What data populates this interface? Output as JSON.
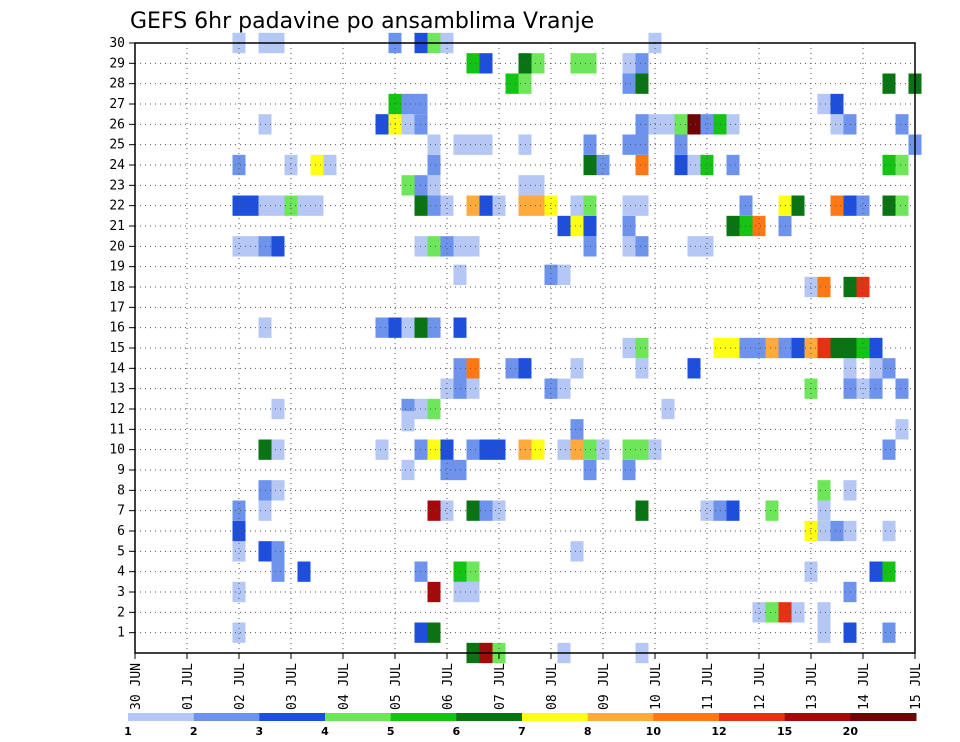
{
  "chart_data": {
    "type": "heatmap",
    "title": "GEFS 6hr padavine po ansamblima Vranje",
    "y_ticks": [
      "1",
      "2",
      "3",
      "4",
      "5",
      "6",
      "7",
      "8",
      "9",
      "10",
      "11",
      "12",
      "13",
      "14",
      "15",
      "16",
      "17",
      "18",
      "19",
      "20",
      "21",
      "22",
      "23",
      "24",
      "25",
      "26",
      "27",
      "28",
      "29",
      "30"
    ],
    "x_ticks": [
      "30 JUN",
      "01 JUL",
      "02 JUL",
      "03 JUL",
      "04 JUL",
      "05 JUL",
      "06 JUL",
      "07 JUL",
      "08 JUL",
      "09 JUL",
      "10 JUL",
      "11 JUL",
      "12 JUL",
      "13 JUL",
      "14 JUL",
      "15 JUL"
    ],
    "grid": true,
    "colorbar": {
      "labels": [
        "1",
        "2",
        "3",
        "4",
        "5",
        "6",
        "7",
        "8",
        "10",
        "12",
        "15",
        "20"
      ],
      "colors": [
        "#b4c7f5",
        "#6e93ec",
        "#1e4fdc",
        "#6ee65a",
        "#14c314",
        "#0a7314",
        "#ffff14",
        "#ffaa3c",
        "#ff7814",
        "#e63214",
        "#a50a0a",
        "#6e0505"
      ]
    },
    "cells": [
      [
        2.0,
        1,
        1
      ],
      [
        5.5,
        1,
        3
      ],
      [
        5.75,
        1,
        6
      ],
      [
        13.25,
        1,
        1
      ],
      [
        13.75,
        1,
        3
      ],
      [
        14.5,
        1,
        2
      ],
      [
        12.0,
        2,
        1
      ],
      [
        12.25,
        2,
        4
      ],
      [
        12.5,
        2,
        10
      ],
      [
        12.75,
        2,
        1
      ],
      [
        13.25,
        2,
        1
      ],
      [
        2.0,
        3,
        1
      ],
      [
        5.75,
        3,
        11
      ],
      [
        6.25,
        3,
        1
      ],
      [
        6.5,
        3,
        1
      ],
      [
        13.75,
        3,
        2
      ],
      [
        2.75,
        4,
        2
      ],
      [
        3.25,
        4,
        3
      ],
      [
        5.5,
        4,
        2
      ],
      [
        6.25,
        4,
        5
      ],
      [
        6.5,
        4,
        4
      ],
      [
        13.0,
        4,
        1
      ],
      [
        14.25,
        4,
        3
      ],
      [
        14.5,
        4,
        5
      ],
      [
        2.0,
        5,
        1
      ],
      [
        2.5,
        5,
        3
      ],
      [
        2.75,
        5,
        2
      ],
      [
        8.5,
        5,
        1
      ],
      [
        2.0,
        6,
        3
      ],
      [
        13.0,
        6,
        7
      ],
      [
        13.25,
        6,
        1
      ],
      [
        13.5,
        6,
        2
      ],
      [
        13.75,
        6,
        1
      ],
      [
        14.5,
        6,
        1
      ],
      [
        2.0,
        7,
        2
      ],
      [
        2.5,
        7,
        1
      ],
      [
        5.75,
        7,
        11
      ],
      [
        6.0,
        7,
        1
      ],
      [
        6.5,
        7,
        6
      ],
      [
        6.75,
        7,
        2
      ],
      [
        7.0,
        7,
        1
      ],
      [
        9.75,
        7,
        6
      ],
      [
        11.0,
        7,
        1
      ],
      [
        11.25,
        7,
        2
      ],
      [
        11.5,
        7,
        3
      ],
      [
        12.25,
        7,
        4
      ],
      [
        13.25,
        7,
        1
      ],
      [
        2.5,
        8,
        2
      ],
      [
        2.75,
        8,
        1
      ],
      [
        13.25,
        8,
        4
      ],
      [
        13.75,
        8,
        1
      ],
      [
        5.25,
        9,
        1
      ],
      [
        6.0,
        9,
        2
      ],
      [
        6.25,
        9,
        2
      ],
      [
        8.75,
        9,
        2
      ],
      [
        9.5,
        9,
        2
      ],
      [
        2.5,
        10,
        6
      ],
      [
        2.75,
        10,
        1
      ],
      [
        4.75,
        10,
        1
      ],
      [
        5.5,
        10,
        2
      ],
      [
        5.75,
        10,
        7
      ],
      [
        6.0,
        10,
        3
      ],
      [
        6.5,
        10,
        2
      ],
      [
        6.75,
        10,
        3
      ],
      [
        7.0,
        10,
        3
      ],
      [
        7.5,
        10,
        8
      ],
      [
        7.75,
        10,
        7
      ],
      [
        8.25,
        10,
        1
      ],
      [
        8.5,
        10,
        8
      ],
      [
        8.75,
        10,
        4
      ],
      [
        9.0,
        10,
        1
      ],
      [
        9.5,
        10,
        4
      ],
      [
        9.75,
        10,
        4
      ],
      [
        10.0,
        10,
        1
      ],
      [
        14.5,
        10,
        2
      ],
      [
        8.5,
        11,
        2
      ],
      [
        14.75,
        11,
        1
      ],
      [
        2.75,
        12,
        1
      ],
      [
        5.25,
        12,
        2
      ],
      [
        5.5,
        12,
        1
      ],
      [
        5.75,
        12,
        4
      ],
      [
        5.25,
        11.4,
        1
      ],
      [
        10.25,
        12,
        1
      ],
      [
        6.0,
        13,
        1
      ],
      [
        6.25,
        13,
        2
      ],
      [
        6.5,
        13,
        1
      ],
      [
        8.0,
        13,
        2
      ],
      [
        8.25,
        13,
        1
      ],
      [
        13.0,
        13,
        4
      ],
      [
        13.75,
        13,
        2
      ],
      [
        14.0,
        13,
        1
      ],
      [
        14.25,
        13,
        2
      ],
      [
        14.75,
        13,
        2
      ],
      [
        6.25,
        14,
        2
      ],
      [
        6.5,
        14,
        9
      ],
      [
        7.25,
        14,
        2
      ],
      [
        7.5,
        14,
        3
      ],
      [
        8.5,
        14,
        1
      ],
      [
        9.75,
        14,
        1
      ],
      [
        10.75,
        14,
        3
      ],
      [
        13.75,
        14,
        1
      ],
      [
        14.25,
        14,
        1
      ],
      [
        14.5,
        14,
        2
      ],
      [
        9.5,
        15,
        1
      ],
      [
        9.75,
        15,
        4
      ],
      [
        11.25,
        15,
        7
      ],
      [
        11.5,
        15,
        7
      ],
      [
        11.75,
        15,
        2
      ],
      [
        12.0,
        15,
        2
      ],
      [
        12.25,
        15,
        8
      ],
      [
        12.5,
        15,
        2
      ],
      [
        12.75,
        15,
        3
      ],
      [
        13.0,
        15,
        8
      ],
      [
        13.25,
        15,
        10
      ],
      [
        13.5,
        15,
        6
      ],
      [
        13.75,
        15,
        6
      ],
      [
        14.0,
        15,
        5
      ],
      [
        14.25,
        15,
        3
      ],
      [
        2.5,
        16,
        1
      ],
      [
        4.75,
        16,
        2
      ],
      [
        5.0,
        16,
        3
      ],
      [
        5.25,
        16,
        1
      ],
      [
        5.5,
        16,
        6
      ],
      [
        5.75,
        16,
        2
      ],
      [
        6.25,
        16,
        3
      ],
      [
        13.0,
        18,
        1
      ],
      [
        13.25,
        18,
        9
      ],
      [
        13.75,
        18,
        6
      ],
      [
        14.0,
        18,
        10
      ],
      [
        6.25,
        18.6,
        1
      ],
      [
        8.0,
        18.6,
        2
      ],
      [
        8.25,
        18.6,
        1
      ],
      [
        2.0,
        20,
        1
      ],
      [
        2.25,
        20,
        1
      ],
      [
        2.5,
        20,
        2
      ],
      [
        2.75,
        20,
        3
      ],
      [
        5.5,
        20,
        1
      ],
      [
        5.75,
        20,
        4
      ],
      [
        6.0,
        20,
        2
      ],
      [
        6.25,
        20,
        1
      ],
      [
        6.5,
        20,
        1
      ],
      [
        8.75,
        20,
        2
      ],
      [
        9.5,
        20,
        1
      ],
      [
        9.75,
        20,
        2
      ],
      [
        10.75,
        20,
        1
      ],
      [
        11.0,
        20,
        1
      ],
      [
        8.25,
        21,
        3
      ],
      [
        8.5,
        21,
        7
      ],
      [
        8.75,
        21,
        3
      ],
      [
        9.5,
        21,
        2
      ],
      [
        11.5,
        21,
        6
      ],
      [
        11.75,
        21,
        5
      ],
      [
        12.0,
        21,
        9
      ],
      [
        12.5,
        21,
        2
      ],
      [
        2.0,
        22,
        3
      ],
      [
        2.25,
        22,
        3
      ],
      [
        2.5,
        22,
        1
      ],
      [
        2.75,
        22,
        1
      ],
      [
        3.0,
        22,
        4
      ],
      [
        3.25,
        22,
        1
      ],
      [
        3.5,
        22,
        1
      ],
      [
        5.5,
        22,
        6
      ],
      [
        5.75,
        22,
        2
      ],
      [
        6.0,
        22,
        1
      ],
      [
        6.5,
        22,
        8
      ],
      [
        6.75,
        22,
        3
      ],
      [
        7.0,
        22,
        1
      ],
      [
        7.5,
        22,
        8
      ],
      [
        7.75,
        22,
        8
      ],
      [
        8.0,
        22,
        7
      ],
      [
        8.5,
        22,
        1
      ],
      [
        8.75,
        22,
        4
      ],
      [
        9.5,
        22,
        1
      ],
      [
        9.75,
        22,
        1
      ],
      [
        11.75,
        22,
        2
      ],
      [
        12.5,
        22,
        7
      ],
      [
        12.75,
        22,
        6
      ],
      [
        13.5,
        22,
        9
      ],
      [
        13.75,
        22,
        3
      ],
      [
        14.0,
        22,
        2
      ],
      [
        14.5,
        22,
        6
      ],
      [
        14.75,
        22,
        4
      ],
      [
        5.25,
        23,
        4
      ],
      [
        5.5,
        23,
        2
      ],
      [
        5.75,
        23,
        1
      ],
      [
        7.5,
        23,
        1
      ],
      [
        7.75,
        23,
        1
      ],
      [
        2.0,
        24,
        2
      ],
      [
        3.0,
        24,
        1
      ],
      [
        3.5,
        24,
        7
      ],
      [
        3.75,
        24,
        1
      ],
      [
        5.75,
        24,
        2
      ],
      [
        8.75,
        24,
        6
      ],
      [
        9.0,
        24,
        2
      ],
      [
        9.75,
        24,
        9
      ],
      [
        10.5,
        24,
        3
      ],
      [
        10.75,
        24,
        1
      ],
      [
        11.0,
        24,
        5
      ],
      [
        11.5,
        24,
        2
      ],
      [
        14.5,
        24,
        5
      ],
      [
        14.75,
        24,
        4
      ],
      [
        5.75,
        25,
        1
      ],
      [
        6.25,
        25,
        1
      ],
      [
        6.5,
        25,
        1
      ],
      [
        6.75,
        25,
        1
      ],
      [
        7.5,
        25,
        1
      ],
      [
        8.75,
        25,
        2
      ],
      [
        9.5,
        25,
        2
      ],
      [
        9.75,
        25,
        2
      ],
      [
        10.5,
        25,
        2
      ],
      [
        15.0,
        25,
        2
      ],
      [
        2.5,
        26,
        1
      ],
      [
        4.75,
        26,
        3
      ],
      [
        5.0,
        26,
        7
      ],
      [
        5.25,
        26,
        1
      ],
      [
        5.5,
        26,
        2
      ],
      [
        9.75,
        26,
        2
      ],
      [
        10.0,
        26,
        1
      ],
      [
        10.25,
        26,
        1
      ],
      [
        10.5,
        26,
        4
      ],
      [
        10.75,
        26,
        12
      ],
      [
        11.0,
        26,
        2
      ],
      [
        11.25,
        26,
        5
      ],
      [
        11.5,
        26,
        1
      ],
      [
        13.5,
        26,
        1
      ],
      [
        13.75,
        26,
        2
      ],
      [
        14.75,
        26,
        2
      ],
      [
        5.0,
        27,
        5
      ],
      [
        5.25,
        27,
        2
      ],
      [
        5.5,
        27,
        2
      ],
      [
        13.25,
        27,
        1
      ],
      [
        13.5,
        27,
        3
      ],
      [
        7.25,
        28,
        5
      ],
      [
        7.5,
        28,
        4
      ],
      [
        9.5,
        28,
        2
      ],
      [
        9.75,
        28,
        6
      ],
      [
        14.5,
        28,
        6
      ],
      [
        15.0,
        28,
        6
      ],
      [
        6.5,
        29,
        5
      ],
      [
        6.75,
        29,
        3
      ],
      [
        7.5,
        29,
        6
      ],
      [
        7.75,
        29,
        4
      ],
      [
        8.5,
        29,
        4
      ],
      [
        8.75,
        29,
        4
      ],
      [
        9.5,
        29,
        1
      ],
      [
        9.75,
        29,
        2
      ],
      [
        2.0,
        30,
        1
      ],
      [
        2.5,
        30,
        1
      ],
      [
        2.75,
        30,
        1
      ],
      [
        5.0,
        30,
        2
      ],
      [
        5.5,
        30,
        3
      ],
      [
        5.75,
        30,
        4
      ],
      [
        6.0,
        30,
        1
      ],
      [
        10.0,
        30,
        1
      ],
      [
        6.5,
        0,
        6
      ],
      [
        6.75,
        0,
        11
      ],
      [
        7.0,
        0,
        4
      ],
      [
        8.25,
        0,
        1
      ],
      [
        9.75,
        0,
        1
      ]
    ]
  }
}
